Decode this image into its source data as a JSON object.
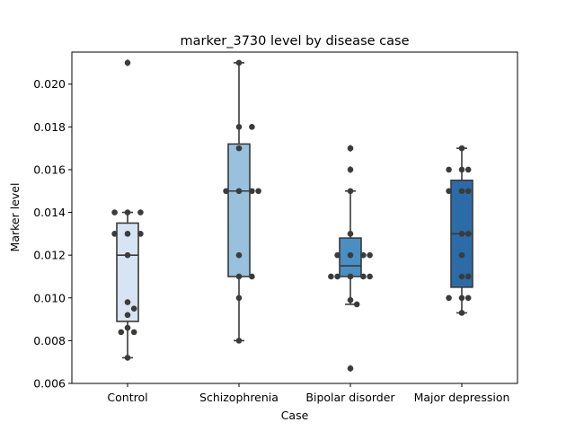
{
  "chart_data": {
    "type": "box",
    "title": "marker_3730 level by disease case",
    "xlabel": "Case",
    "ylabel": "Marker level",
    "ylim": [
      0.006,
      0.0215
    ],
    "yticks": [
      "0.006",
      "0.008",
      "0.010",
      "0.012",
      "0.014",
      "0.016",
      "0.018",
      "0.020"
    ],
    "grid": false,
    "categories": [
      "Control",
      "Schizophrenia",
      "Bipolar disorder",
      "Major depression"
    ],
    "box_colors": [
      "#d6e4f3",
      "#97c1dc",
      "#4a8fc4",
      "#2b6ca8"
    ],
    "edge_color": "#3a3a3a",
    "point_color": "#3b3b3b",
    "boxes": [
      {
        "q1": 0.0089,
        "median": 0.012,
        "q3": 0.0135,
        "whisker_low": 0.0072,
        "whisker_high": 0.014,
        "outliers": [
          0.021
        ]
      },
      {
        "q1": 0.011,
        "median": 0.015,
        "q3": 0.0172,
        "whisker_low": 0.008,
        "whisker_high": 0.021,
        "outliers": []
      },
      {
        "q1": 0.011,
        "median": 0.0115,
        "q3": 0.0128,
        "whisker_low": 0.0097,
        "whisker_high": 0.015,
        "outliers": [
          0.017,
          0.016,
          0.0067
        ]
      },
      {
        "q1": 0.0105,
        "median": 0.013,
        "q3": 0.0155,
        "whisker_low": 0.0093,
        "whisker_high": 0.017,
        "outliers": []
      }
    ],
    "points": [
      [
        0.021,
        0.014,
        0.014,
        0.014,
        0.013,
        0.013,
        0.013,
        0.012,
        0.0098,
        0.0095,
        0.0092,
        0.0086,
        0.0084,
        0.0084,
        0.0072
      ],
      [
        0.021,
        0.018,
        0.018,
        0.017,
        0.015,
        0.015,
        0.015,
        0.015,
        0.012,
        0.011,
        0.011,
        0.01,
        0.008
      ],
      [
        0.017,
        0.016,
        0.015,
        0.013,
        0.012,
        0.012,
        0.012,
        0.012,
        0.011,
        0.011,
        0.011,
        0.011,
        0.011,
        0.0099,
        0.0097,
        0.0067
      ],
      [
        0.017,
        0.016,
        0.016,
        0.016,
        0.015,
        0.015,
        0.015,
        0.013,
        0.013,
        0.012,
        0.011,
        0.011,
        0.01,
        0.01,
        0.01,
        0.0093
      ]
    ]
  }
}
